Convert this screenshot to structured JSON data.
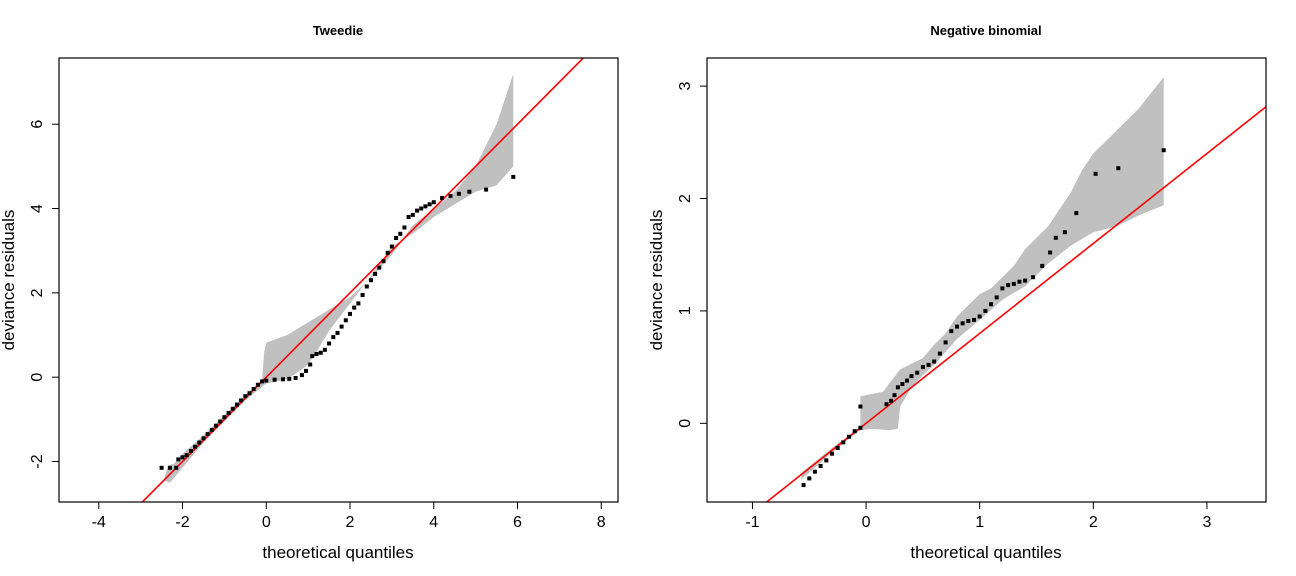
{
  "chart_data": [
    {
      "type": "scatter",
      "title": "Tweedie",
      "xlabel": "theoretical quantiles",
      "ylabel": "deviance residuals",
      "xlim": [
        -4.95,
        8.4
      ],
      "ylim": [
        -2.96,
        7.57
      ],
      "xticks": [
        "-4",
        "-2",
        "0",
        "2",
        "4",
        "6",
        "8"
      ],
      "yticks": [
        "-2",
        "0",
        "2",
        "4",
        "6"
      ],
      "colors": {
        "points": "#000000",
        "reference_line": "#ff0000",
        "envelope": "#c0c0c0"
      },
      "reference_line": {
        "intercept": 0,
        "slope": 1
      },
      "envelope": {
        "upper": [
          [
            -2.35,
            -2.1
          ],
          [
            -2.2,
            -2.05
          ],
          [
            -2.0,
            -1.82
          ],
          [
            -1.5,
            -1.38
          ],
          [
            -1.0,
            -0.9
          ],
          [
            -0.5,
            -0.42
          ],
          [
            -0.1,
            -0.06
          ],
          [
            -0.05,
            0.6
          ],
          [
            0.0,
            0.82
          ],
          [
            0.5,
            1.0
          ],
          [
            1.0,
            1.3
          ],
          [
            1.5,
            1.6
          ],
          [
            2.0,
            1.9
          ],
          [
            2.5,
            2.35
          ],
          [
            3.0,
            2.9
          ],
          [
            3.5,
            3.6
          ],
          [
            4.0,
            4.0
          ],
          [
            4.5,
            4.4
          ],
          [
            5.0,
            5.0
          ],
          [
            5.5,
            6.0
          ],
          [
            5.9,
            7.2
          ]
        ],
        "lower": [
          [
            5.9,
            5.0
          ],
          [
            5.5,
            4.55
          ],
          [
            5.0,
            4.4
          ],
          [
            4.5,
            4.1
          ],
          [
            4.0,
            3.8
          ],
          [
            3.5,
            3.4
          ],
          [
            3.0,
            3.1
          ],
          [
            2.5,
            2.4
          ],
          [
            2.0,
            1.75
          ],
          [
            1.5,
            1.1
          ],
          [
            1.2,
            0.6
          ],
          [
            1.0,
            0.3
          ],
          [
            0.8,
            0.15
          ],
          [
            0.5,
            -0.05
          ],
          [
            0.0,
            -0.15
          ],
          [
            -0.5,
            -0.55
          ],
          [
            -1.0,
            -1.05
          ],
          [
            -1.5,
            -1.55
          ],
          [
            -2.0,
            -2.15
          ],
          [
            -2.3,
            -2.5
          ],
          [
            -2.45,
            -2.45
          ]
        ]
      },
      "series": [
        {
          "values": [
            [
              -2.5,
              -2.15
            ],
            [
              -2.3,
              -2.15
            ],
            [
              -2.15,
              -2.15
            ],
            [
              -2.1,
              -1.95
            ],
            [
              -2.0,
              -1.9
            ],
            [
              -1.9,
              -1.85
            ],
            [
              -1.8,
              -1.75
            ],
            [
              -1.7,
              -1.65
            ],
            [
              -1.6,
              -1.55
            ],
            [
              -1.5,
              -1.45
            ],
            [
              -1.4,
              -1.35
            ],
            [
              -1.3,
              -1.25
            ],
            [
              -1.2,
              -1.15
            ],
            [
              -1.1,
              -1.05
            ],
            [
              -1.0,
              -0.95
            ],
            [
              -0.9,
              -0.85
            ],
            [
              -0.8,
              -0.75
            ],
            [
              -0.7,
              -0.65
            ],
            [
              -0.6,
              -0.55
            ],
            [
              -0.5,
              -0.45
            ],
            [
              -0.4,
              -0.38
            ],
            [
              -0.3,
              -0.28
            ],
            [
              -0.2,
              -0.18
            ],
            [
              -0.1,
              -0.1
            ],
            [
              0.0,
              -0.08
            ],
            [
              0.2,
              -0.06
            ],
            [
              0.4,
              -0.05
            ],
            [
              0.55,
              -0.04
            ],
            [
              0.7,
              -0.02
            ],
            [
              0.85,
              0.05
            ],
            [
              0.95,
              0.15
            ],
            [
              1.05,
              0.3
            ],
            [
              1.1,
              0.5
            ],
            [
              1.2,
              0.55
            ],
            [
              1.3,
              0.58
            ],
            [
              1.4,
              0.65
            ],
            [
              1.5,
              0.8
            ],
            [
              1.6,
              0.95
            ],
            [
              1.7,
              1.05
            ],
            [
              1.8,
              1.2
            ],
            [
              1.9,
              1.35
            ],
            [
              2.0,
              1.5
            ],
            [
              2.1,
              1.65
            ],
            [
              2.2,
              1.75
            ],
            [
              2.3,
              1.95
            ],
            [
              2.4,
              2.15
            ],
            [
              2.5,
              2.3
            ],
            [
              2.6,
              2.45
            ],
            [
              2.7,
              2.6
            ],
            [
              2.8,
              2.75
            ],
            [
              2.9,
              2.95
            ],
            [
              3.0,
              3.1
            ],
            [
              3.1,
              3.3
            ],
            [
              3.2,
              3.4
            ],
            [
              3.3,
              3.55
            ],
            [
              3.4,
              3.8
            ],
            [
              3.5,
              3.85
            ],
            [
              3.6,
              3.95
            ],
            [
              3.7,
              4.0
            ],
            [
              3.8,
              4.05
            ],
            [
              3.9,
              4.1
            ],
            [
              4.0,
              4.15
            ],
            [
              4.2,
              4.25
            ],
            [
              4.4,
              4.3
            ],
            [
              4.6,
              4.35
            ],
            [
              4.85,
              4.4
            ],
            [
              5.25,
              4.45
            ],
            [
              5.9,
              4.75
            ]
          ]
        }
      ]
    },
    {
      "type": "scatter",
      "title": "Negative binomial",
      "xlabel": "theoretical quantiles",
      "ylabel": "deviance residuals",
      "xlim": [
        -1.4,
        3.52
      ],
      "ylim": [
        -0.7,
        3.25
      ],
      "xticks": [
        "-1",
        "0",
        "1",
        "2",
        "3"
      ],
      "yticks": [
        "0",
        "1",
        "2",
        "3"
      ],
      "colors": {
        "points": "#000000",
        "reference_line": "#ff0000",
        "envelope": "#c0c0c0"
      },
      "reference_line": {
        "intercept": 0,
        "slope": 0.8
      },
      "envelope": {
        "upper": [
          [
            -0.57,
            -0.44
          ],
          [
            -0.3,
            -0.22
          ],
          [
            -0.05,
            -0.03
          ],
          [
            -0.05,
            0.24
          ],
          [
            0.15,
            0.28
          ],
          [
            0.2,
            0.35
          ],
          [
            0.3,
            0.48
          ],
          [
            0.4,
            0.53
          ],
          [
            0.5,
            0.58
          ],
          [
            0.6,
            0.7
          ],
          [
            0.7,
            0.8
          ],
          [
            0.8,
            0.95
          ],
          [
            0.9,
            1.05
          ],
          [
            1.0,
            1.15
          ],
          [
            1.1,
            1.2
          ],
          [
            1.2,
            1.3
          ],
          [
            1.3,
            1.4
          ],
          [
            1.4,
            1.55
          ],
          [
            1.5,
            1.65
          ],
          [
            1.6,
            1.75
          ],
          [
            1.7,
            1.9
          ],
          [
            1.8,
            2.05
          ],
          [
            1.9,
            2.25
          ],
          [
            2.0,
            2.4
          ],
          [
            2.2,
            2.6
          ],
          [
            2.4,
            2.8
          ],
          [
            2.62,
            3.08
          ]
        ],
        "lower": [
          [
            2.62,
            1.94
          ],
          [
            2.4,
            1.85
          ],
          [
            2.2,
            1.75
          ],
          [
            2.0,
            1.7
          ],
          [
            1.8,
            1.58
          ],
          [
            1.6,
            1.42
          ],
          [
            1.4,
            1.22
          ],
          [
            1.2,
            1.1
          ],
          [
            1.0,
            0.92
          ],
          [
            0.8,
            0.75
          ],
          [
            0.6,
            0.52
          ],
          [
            0.5,
            0.43
          ],
          [
            0.4,
            0.32
          ],
          [
            0.3,
            0.15
          ],
          [
            0.28,
            -0.05
          ],
          [
            0.2,
            -0.06
          ],
          [
            0.05,
            -0.05
          ],
          [
            -0.05,
            -0.06
          ],
          [
            -0.3,
            -0.26
          ],
          [
            -0.57,
            -0.5
          ]
        ]
      },
      "series": [
        {
          "values": [
            [
              -0.55,
              -0.55
            ],
            [
              -0.5,
              -0.49
            ],
            [
              -0.45,
              -0.43
            ],
            [
              -0.4,
              -0.38
            ],
            [
              -0.35,
              -0.33
            ],
            [
              -0.3,
              -0.27
            ],
            [
              -0.25,
              -0.22
            ],
            [
              -0.2,
              -0.17
            ],
            [
              -0.15,
              -0.12
            ],
            [
              -0.1,
              -0.07
            ],
            [
              -0.05,
              -0.04
            ],
            [
              -0.05,
              0.15
            ],
            [
              0.18,
              0.17
            ],
            [
              0.22,
              0.2
            ],
            [
              0.25,
              0.25
            ],
            [
              0.28,
              0.32
            ],
            [
              0.32,
              0.35
            ],
            [
              0.36,
              0.38
            ],
            [
              0.4,
              0.42
            ],
            [
              0.45,
              0.45
            ],
            [
              0.5,
              0.5
            ],
            [
              0.55,
              0.52
            ],
            [
              0.6,
              0.55
            ],
            [
              0.65,
              0.62
            ],
            [
              0.7,
              0.72
            ],
            [
              0.75,
              0.82
            ],
            [
              0.8,
              0.86
            ],
            [
              0.85,
              0.89
            ],
            [
              0.9,
              0.91
            ],
            [
              0.95,
              0.92
            ],
            [
              1.0,
              0.95
            ],
            [
              1.05,
              1.0
            ],
            [
              1.1,
              1.06
            ],
            [
              1.15,
              1.12
            ],
            [
              1.2,
              1.2
            ],
            [
              1.25,
              1.23
            ],
            [
              1.3,
              1.24
            ],
            [
              1.35,
              1.26
            ],
            [
              1.4,
              1.27
            ],
            [
              1.47,
              1.3
            ],
            [
              1.55,
              1.4
            ],
            [
              1.62,
              1.52
            ],
            [
              1.67,
              1.65
            ],
            [
              1.75,
              1.7
            ],
            [
              1.85,
              1.87
            ],
            [
              2.02,
              2.22
            ],
            [
              2.22,
              2.27
            ],
            [
              2.62,
              2.43
            ]
          ]
        }
      ]
    }
  ]
}
